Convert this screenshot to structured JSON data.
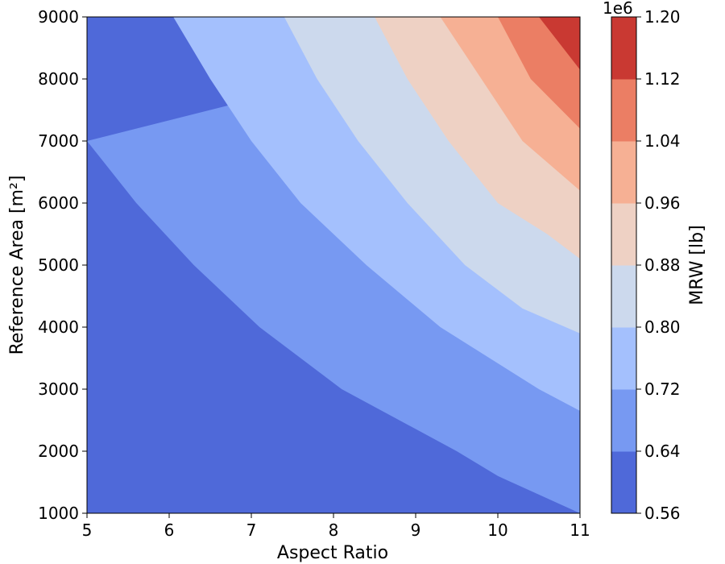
{
  "chart_data": {
    "type": "contourf",
    "xlabel": "Aspect Ratio",
    "ylabel": "Reference Area [m²]",
    "xlim": [
      5,
      11
    ],
    "ylim": [
      1000,
      9000
    ],
    "x_ticks": [
      "5",
      "6",
      "7",
      "8",
      "9",
      "10",
      "11"
    ],
    "y_ticks": [
      "1000",
      "2000",
      "3000",
      "4000",
      "5000",
      "6000",
      "7000",
      "8000",
      "9000"
    ],
    "colorbar": {
      "label": "MRW [lb]",
      "offset_text": "1e6",
      "scale": 1000000,
      "ticks": [
        "0.56",
        "0.64",
        "0.72",
        "0.80",
        "0.88",
        "0.96",
        "1.04",
        "1.12",
        "1.20"
      ],
      "levels": [
        0.56,
        0.64,
        0.72,
        0.8,
        0.88,
        0.96,
        1.04,
        1.12,
        1.2
      ],
      "colors": [
        "#4f69d9",
        "#7799f2",
        "#a4c0fd",
        "#ccd9ed",
        "#eed1c4",
        "#f6b094",
        "#eb7e64",
        "#c93932"
      ]
    },
    "contour_boundaries": [
      {
        "level": 0.64,
        "points": [
          [
            5,
            7000
          ],
          [
            5.6,
            6000
          ],
          [
            6.3,
            5000
          ],
          [
            7.1,
            4000
          ],
          [
            8.1,
            3000
          ],
          [
            9.5,
            2000
          ],
          [
            10.0,
            1600
          ],
          [
            11,
            1000
          ]
        ]
      },
      {
        "level": 0.72,
        "points": [
          [
            6.05,
            9000
          ],
          [
            6.5,
            8000
          ],
          [
            7.0,
            7000
          ],
          [
            7.6,
            6000
          ],
          [
            8.4,
            5000
          ],
          [
            9.3,
            4000
          ],
          [
            10.5,
            3000
          ],
          [
            11,
            2650
          ]
        ]
      },
      {
        "level": 0.8,
        "points": [
          [
            7.4,
            9000
          ],
          [
            7.8,
            8000
          ],
          [
            8.3,
            7000
          ],
          [
            8.9,
            6000
          ],
          [
            9.6,
            5000
          ],
          [
            10.3,
            4300
          ],
          [
            11,
            3900
          ]
        ]
      },
      {
        "level": 0.88,
        "points": [
          [
            8.5,
            9000
          ],
          [
            8.9,
            8000
          ],
          [
            9.4,
            7000
          ],
          [
            10.0,
            6000
          ],
          [
            10.6,
            5500
          ],
          [
            11,
            5100
          ]
        ]
      },
      {
        "level": 0.96,
        "points": [
          [
            9.3,
            9000
          ],
          [
            9.8,
            8000
          ],
          [
            10.3,
            7000
          ],
          [
            11,
            6200
          ]
        ]
      },
      {
        "level": 1.04,
        "points": [
          [
            10.0,
            9000
          ],
          [
            10.4,
            8000
          ],
          [
            11,
            7200
          ]
        ]
      },
      {
        "level": 1.12,
        "points": [
          [
            10.5,
            9000
          ],
          [
            11,
            8150
          ]
        ]
      }
    ]
  }
}
